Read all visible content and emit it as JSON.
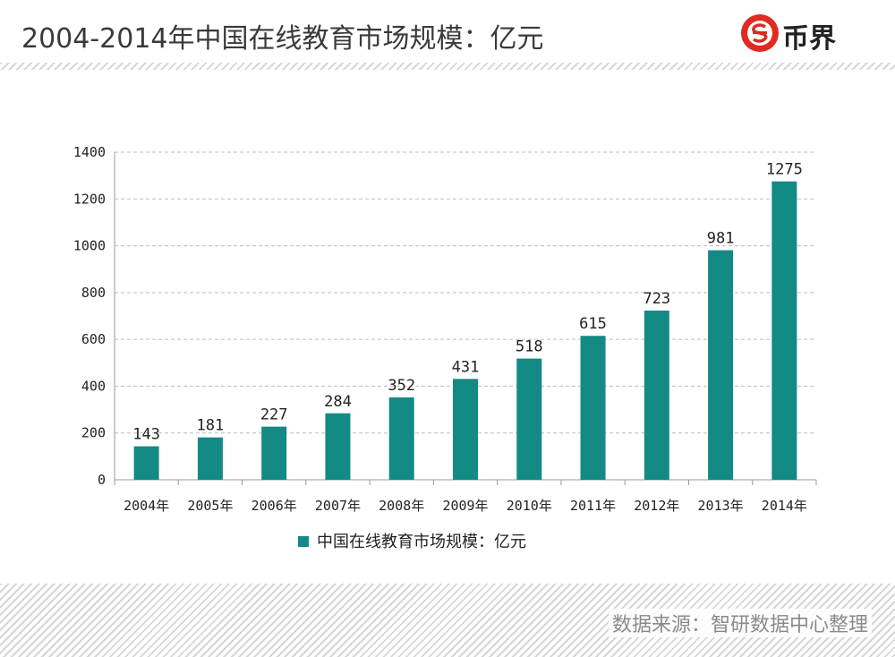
{
  "header": {
    "title": "2004-2014年中国在线教育市场规模：亿元",
    "logo_text": "币界",
    "logo_icon": "currency-s-logo-icon"
  },
  "footer": {
    "source": "数据来源：智研数据中心整理"
  },
  "colors": {
    "bar": "#138a84",
    "logo_red": "#e02a22",
    "grid": "#bdbdbd"
  },
  "chart_data": {
    "type": "bar",
    "title": "",
    "xlabel": "",
    "ylabel": "",
    "categories": [
      "2004年",
      "2005年",
      "2006年",
      "2007年",
      "2008年",
      "2009年",
      "2010年",
      "2011年",
      "2012年",
      "2013年",
      "2014年"
    ],
    "series": [
      {
        "name": "中国在线教育市场规模：亿元",
        "values": [
          143,
          181,
          227,
          284,
          352,
          431,
          518,
          615,
          723,
          981,
          1275
        ]
      }
    ],
    "ylim": [
      0,
      1400
    ],
    "yticks": [
      0,
      200,
      400,
      600,
      800,
      1000,
      1200,
      1400
    ],
    "grid": true,
    "legend_position": "bottom-left"
  }
}
